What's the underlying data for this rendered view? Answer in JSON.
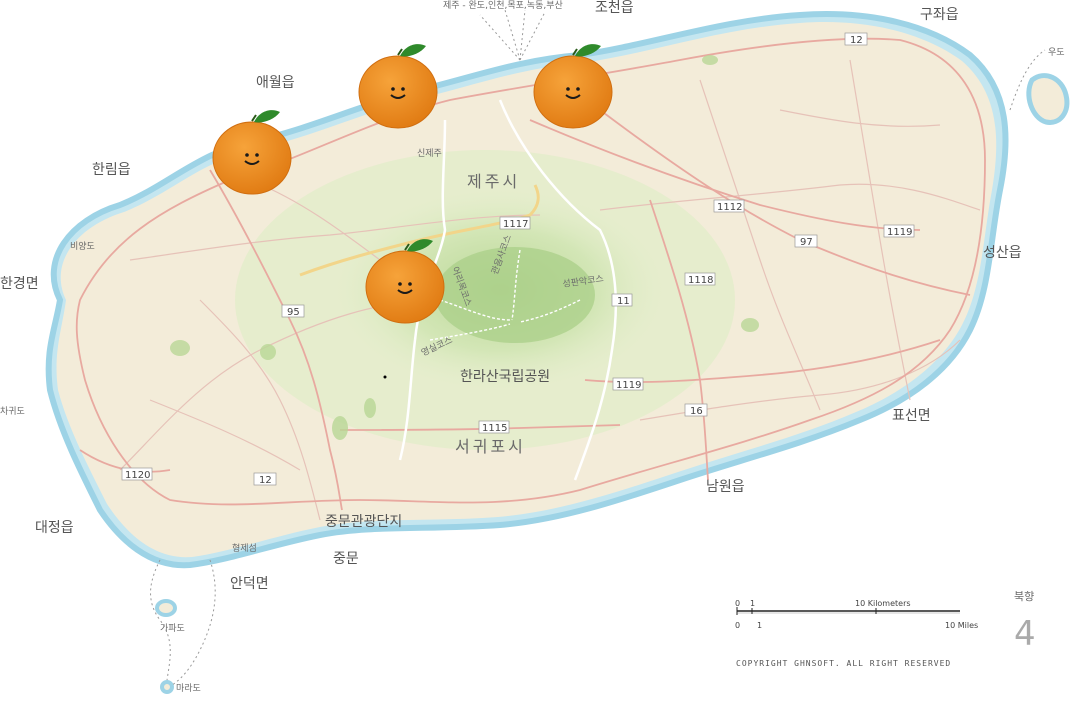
{
  "header": {
    "ferry_note": "제주 - 완도,인천,목포,녹동,부산"
  },
  "towns": {
    "jocheon": "조천읍",
    "gujwa": "구좌읍",
    "aewol": "애월읍",
    "hallim": "한림읍",
    "hangyeong": "한경면",
    "daejeong": "대정읍",
    "andeok": "안덕면",
    "jungmun": "중문",
    "jungmun_resort": "중문관광단지",
    "namwon": "남원읍",
    "pyoseon": "표선면",
    "seongsan": "성산읍"
  },
  "cities": {
    "jeju_si": "제주시",
    "seogwipo_si": "서귀포시",
    "hallasan_park": "한라산국립공원",
    "sinjeju": "신제주"
  },
  "islands": {
    "udo": "우도",
    "biyangdo": "비양도",
    "chagwido": "차귀도",
    "hyeongjeseom": "형제섬",
    "gapado": "가파도",
    "marado": "마라도"
  },
  "trails": {
    "eorimok": "어리목코스",
    "gwaneumsa": "관음사코스",
    "seongpanak": "성판악코스",
    "yeongsil": "영실코스"
  },
  "roads": {
    "r12_north": "12",
    "r12_south": "12",
    "r1112": "1112",
    "r97": "97",
    "r1119_east": "1119",
    "r1117": "1117",
    "r1118": "1118",
    "r11": "11",
    "r95": "95",
    "r1119_south": "1119",
    "r16": "16",
    "r1115": "1115",
    "r1120": "1120"
  },
  "scale": {
    "km_zero": "0",
    "km_one": "1",
    "km_ten": "10 Kilometers",
    "mi_zero": "0",
    "mi_one": "1",
    "mi_ten": "10 Miles"
  },
  "north": {
    "label": "북향",
    "symbol": "4"
  },
  "copyright": "COPYRIGHT GHNSOFT. ALL RIGHT RESERVED",
  "markers": [
    {
      "name": "tangerine-marker-aewol"
    },
    {
      "name": "tangerine-marker-hallim"
    },
    {
      "name": "tangerine-marker-jocheon"
    },
    {
      "name": "tangerine-marker-hallasan"
    }
  ],
  "colors": {
    "land": "#f3ecd9",
    "coast": "#bfe3ee",
    "forest_light": "#dceac4",
    "forest_mid": "#c6dea8",
    "forest_dark": "#a9cf88",
    "road": "#e6b8b0",
    "highway": "#f2d58a",
    "tangerine": "#ec8a1c",
    "leaf": "#2f8a2b"
  }
}
